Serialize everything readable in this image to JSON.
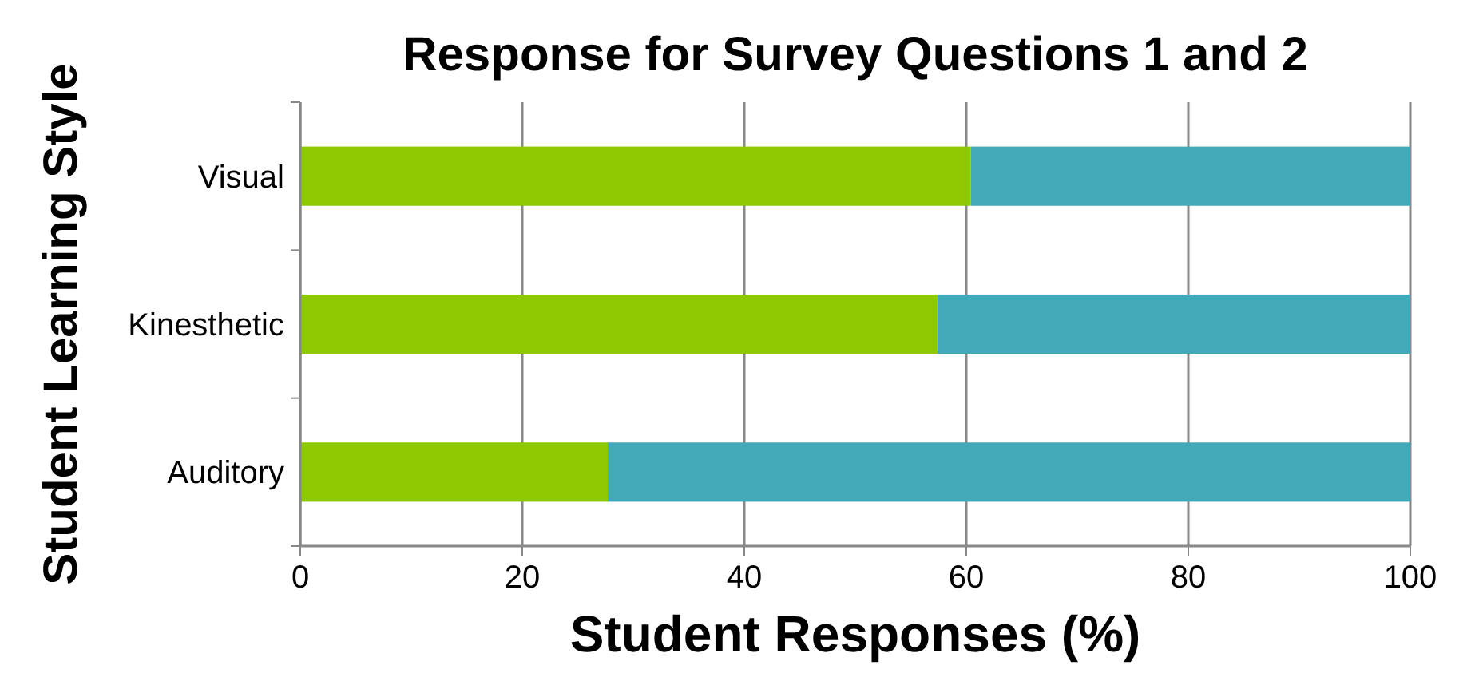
{
  "chart_data": {
    "type": "bar",
    "orientation": "horizontal",
    "stacked": true,
    "title": "Response for Survey Questions 1 and 2",
    "xlabel": "Student Responses (%)",
    "ylabel": "Student Learning Style",
    "categories": [
      "Visual",
      "Kinesthetic",
      "Auditory"
    ],
    "series": [
      {
        "color": "#8dc800",
        "values": [
          60.4,
          57.4,
          27.7
        ]
      },
      {
        "color": "#42a9b8",
        "values": [
          39.6,
          42.6,
          72.3
        ]
      }
    ],
    "xlim": [
      0,
      100
    ],
    "xticks": [
      0,
      20,
      40,
      60,
      80,
      100
    ],
    "grid": "x"
  }
}
